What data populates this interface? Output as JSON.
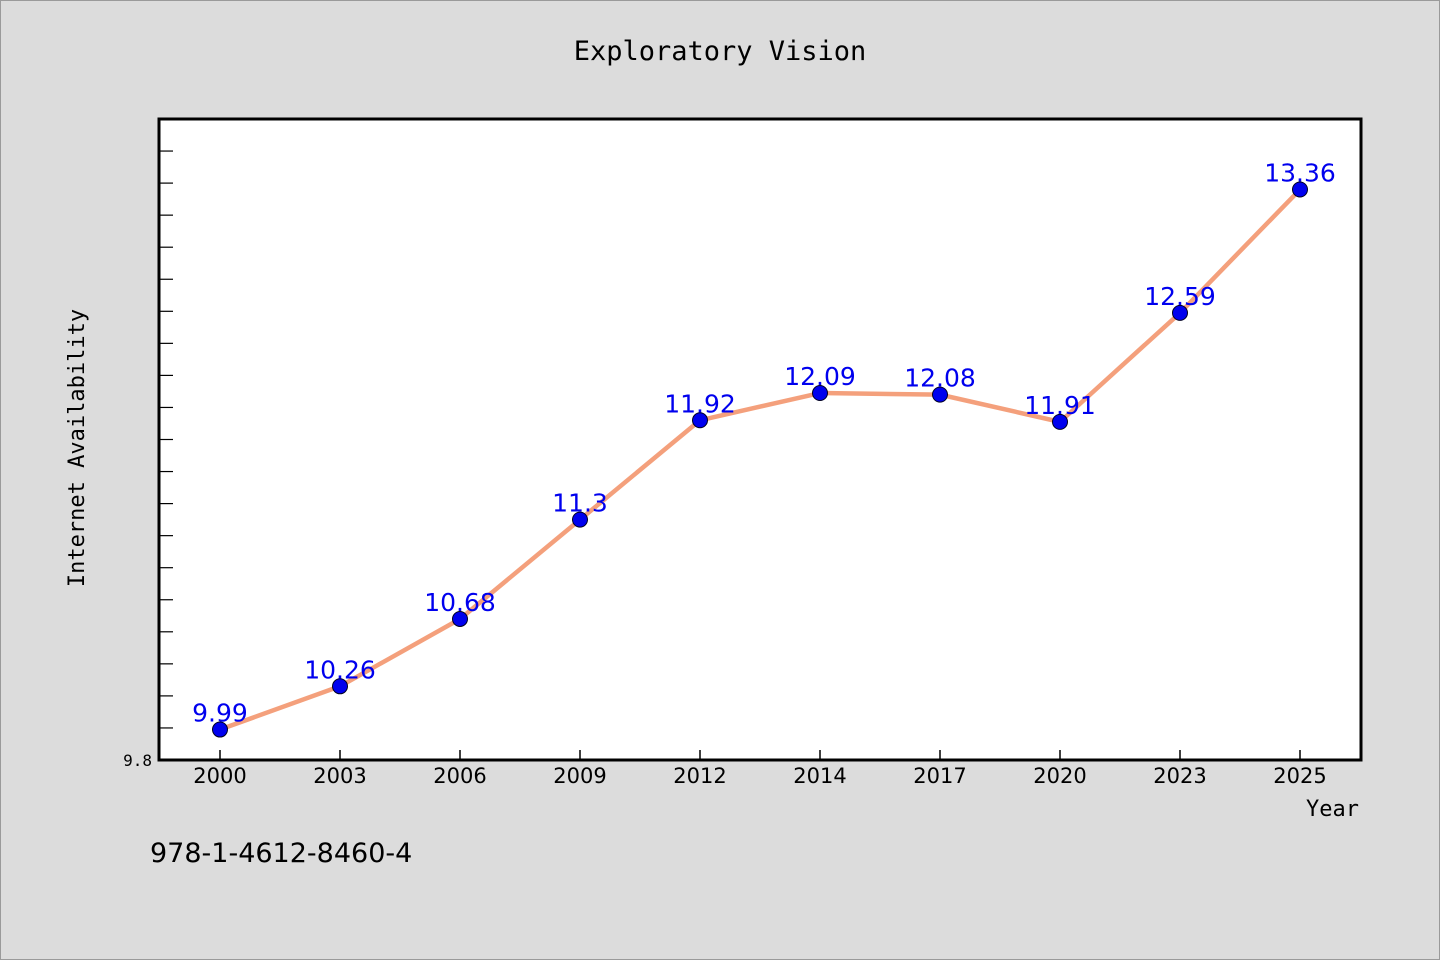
{
  "colors": {
    "background": "#dcdcdc",
    "plot_background": "#ffffff",
    "line": "#f4a07c",
    "marker": "#0000ee",
    "data_label": "#0000ee"
  },
  "footer_text": "978-1-4612-8460-4",
  "chart_data": {
    "type": "line",
    "title": "Exploratory Vision",
    "xlabel": "Year",
    "ylabel": "Internet Availability",
    "categories": [
      "2000",
      "2003",
      "2006",
      "2009",
      "2012",
      "2014",
      "2017",
      "2020",
      "2023",
      "2025"
    ],
    "series": [
      {
        "values": [
          9.99,
          10.26,
          10.68,
          11.3,
          11.92,
          12.09,
          12.08,
          11.91,
          12.59,
          13.36
        ]
      }
    ],
    "data_labels": [
      "9.99",
      "10.26",
      "10.68",
      "11.3",
      "11.92",
      "12.09",
      "12.08",
      "11.91",
      "12.59",
      "13.36"
    ],
    "y_tick_labels": [
      "9.8"
    ],
    "ylim": [
      9.8,
      13.8
    ],
    "grid": false,
    "legend": "none"
  }
}
